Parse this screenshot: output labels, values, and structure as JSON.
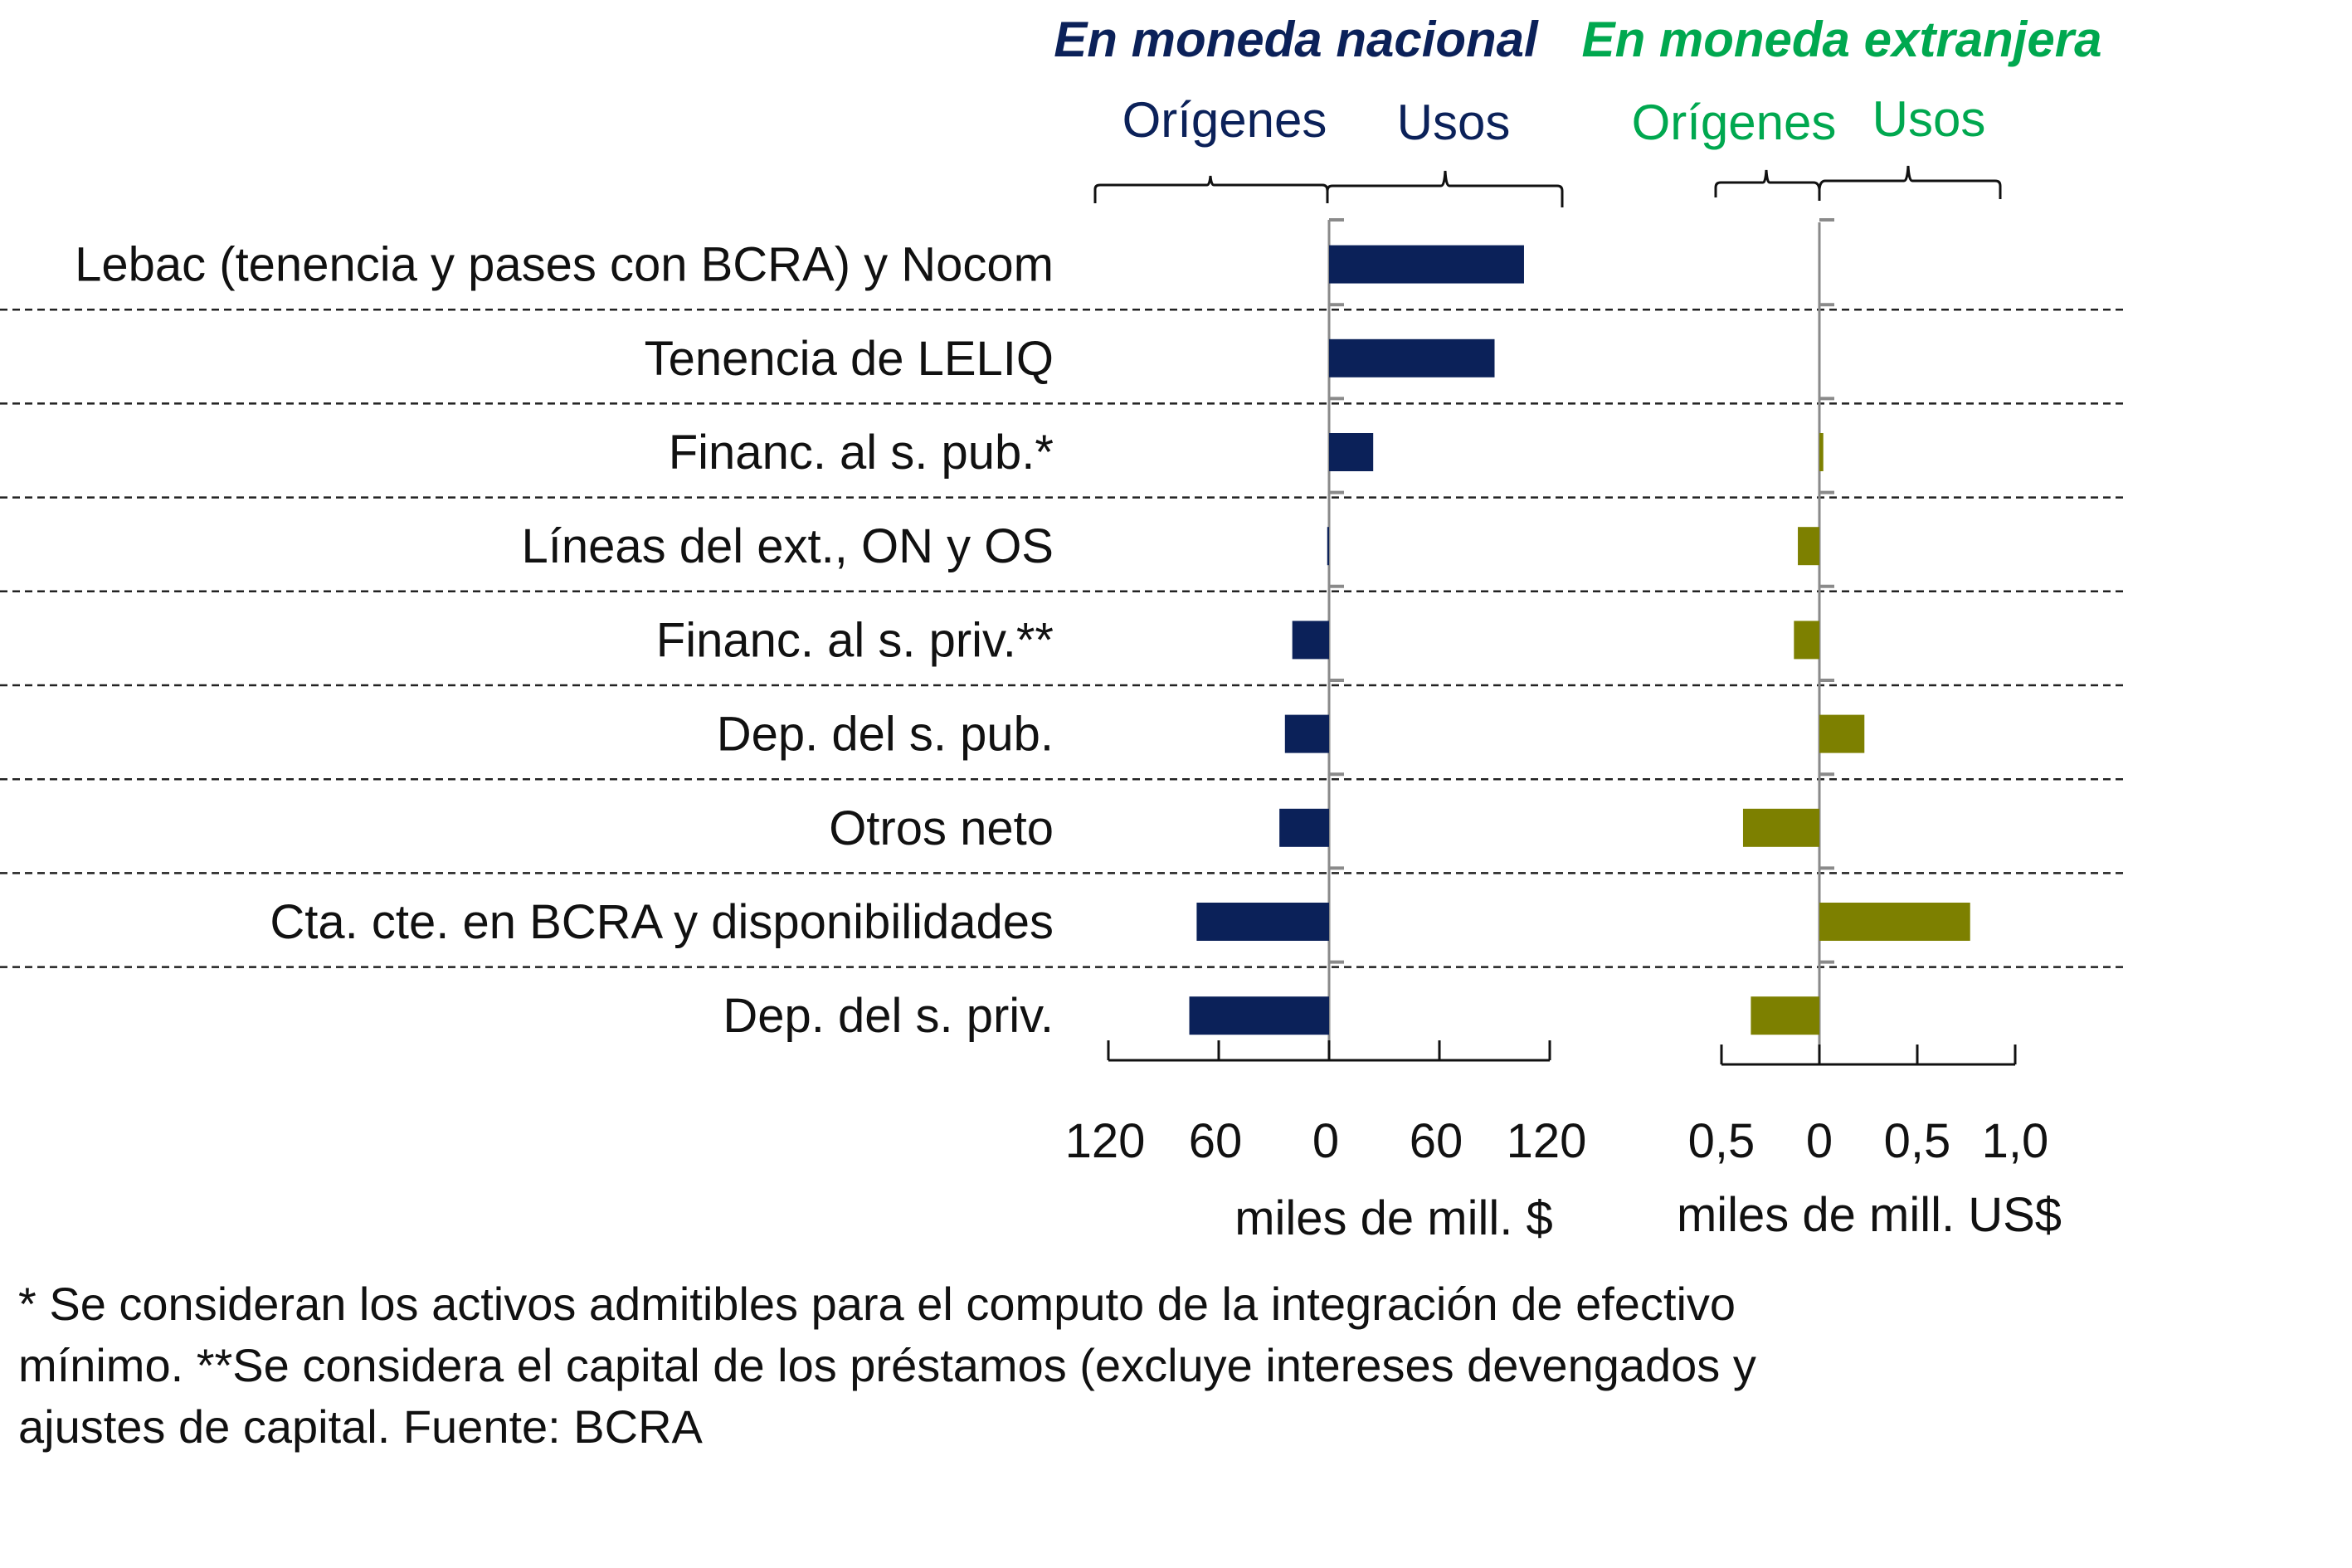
{
  "chart_data": {
    "type": "bar",
    "orientation": "horizontal",
    "panels": [
      {
        "id": "nacional",
        "title": "En moneda nacional",
        "title_color": "#0b2159",
        "left_label": "Orígenes",
        "right_label": "Usos",
        "bar_color": "#0b2159",
        "unit_label": "miles de mill. $",
        "xlim": [
          -120,
          120
        ],
        "ticks": [
          -120,
          -60,
          0,
          60,
          120
        ],
        "tick_labels": [
          "120",
          "60",
          "0",
          "60",
          "120"
        ],
        "values": [
          106,
          90,
          24,
          -1,
          -20,
          -24,
          -27,
          -72,
          -76
        ]
      },
      {
        "id": "extranjera",
        "title": "En moneda extranjera",
        "title_color": "#00a84f",
        "left_label": "Orígenes",
        "right_label": "Usos",
        "bar_color": "#7d8000",
        "unit_label": "miles de mill. US$",
        "xlim": [
          -0.5,
          1.0
        ],
        "ticks": [
          -0.5,
          0,
          0.5,
          1.0
        ],
        "tick_labels": [
          "0,5",
          "0",
          "0,5",
          "1,0"
        ],
        "values": [
          0,
          0,
          0.02,
          -0.11,
          -0.13,
          0.23,
          -0.39,
          0.77,
          -0.35
        ]
      }
    ],
    "categories": [
      "Lebac (tenencia y pases con BCRA) y Nocom",
      "Tenencia de LELIQ",
      "Financ. al s. pub.*",
      "Líneas del ext., ON y OS",
      "Financ. al s. priv.**",
      "Dep. del s. pub.",
      "Otros neto",
      "Cta. cte. en BCRA y disponibilidades",
      "Dep. del s. priv."
    ],
    "grid": "dashed separators between categories",
    "legend": "none"
  },
  "footnote": {
    "line1": "* Se consideran los activos admitibles para el computo de la integración de efectivo",
    "line2": "mínimo. **Se considera el capital de los préstamos (excluye intereses devengados y",
    "line3": "ajustes de capital. Fuente: BCRA"
  }
}
